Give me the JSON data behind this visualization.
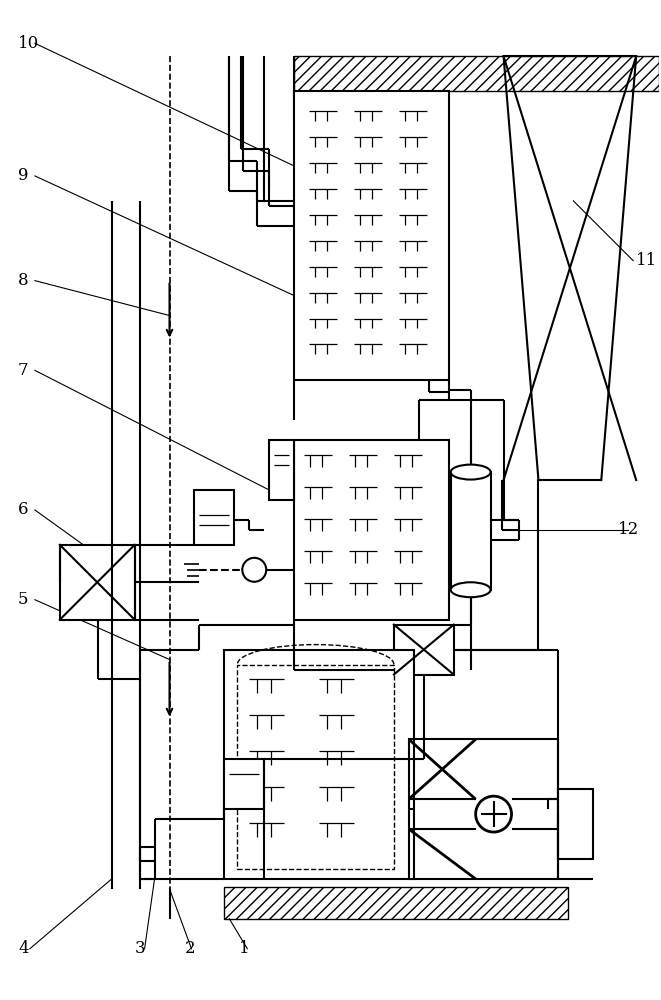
{
  "figsize": [
    6.61,
    10.0
  ],
  "dpi": 100,
  "bg": "#ffffff",
  "lw": 1.5,
  "lw_thin": 0.8
}
